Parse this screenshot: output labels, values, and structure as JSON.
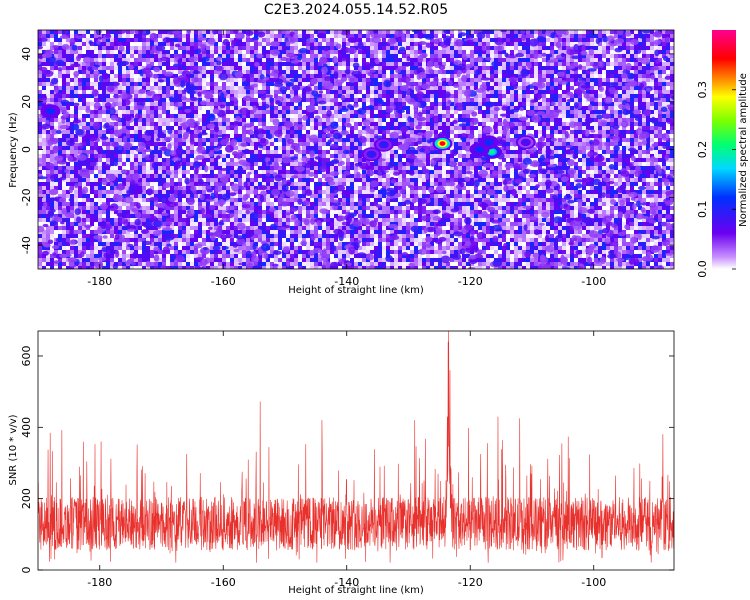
{
  "chart_data": [
    {
      "type": "heatmap",
      "title": "C2E3.2024.055.14.52.R05",
      "xlabel": "Height of straight line (km)",
      "ylabel": "Frequency (Hz)",
      "xlim": [
        -190,
        -87
      ],
      "ylim": [
        -50,
        50
      ],
      "x_ticks": [
        -180,
        -160,
        -140,
        -120,
        -100
      ],
      "y_ticks": [
        -40,
        -20,
        0,
        20,
        40
      ],
      "colorbar": {
        "label": "Normalized spectral amplitude",
        "range": [
          0.0,
          0.4
        ],
        "ticks": [
          0.0,
          0.1,
          0.2,
          0.3
        ]
      },
      "hotspots": [
        {
          "x": -124.5,
          "y": 2.5,
          "value": 0.36
        },
        {
          "x": -116.5,
          "y": -1,
          "value": 0.2
        },
        {
          "x": -118.5,
          "y": 0,
          "value": 0.12
        },
        {
          "x": -117,
          "y": 3,
          "value": 0.12
        },
        {
          "x": -136,
          "y": -2,
          "value": 0.1
        },
        {
          "x": -134,
          "y": 2,
          "value": 0.1
        },
        {
          "x": -188,
          "y": 16,
          "value": 0.12
        },
        {
          "x": -111,
          "y": 3,
          "value": 0.08
        }
      ]
    },
    {
      "type": "line",
      "xlabel": "Height of straight line (km)",
      "ylabel": "SNR (10 * v/v)",
      "xlim": [
        -190,
        -87
      ],
      "ylim": [
        0,
        670
      ],
      "x_ticks": [
        -180,
        -160,
        -140,
        -120,
        -100
      ],
      "y_ticks": [
        0,
        200,
        400,
        600
      ],
      "color": "#e8302c",
      "baseline_mean": 130,
      "noise_max": 330,
      "peaks": [
        {
          "x": -123.5,
          "y": 670
        },
        {
          "x": -123.6,
          "y": 640
        },
        {
          "x": -123.3,
          "y": 560
        },
        {
          "x": -154,
          "y": 472
        },
        {
          "x": -115.5,
          "y": 430
        },
        {
          "x": -112,
          "y": 425
        },
        {
          "x": -129,
          "y": 420
        },
        {
          "x": -144,
          "y": 420
        }
      ]
    }
  ]
}
